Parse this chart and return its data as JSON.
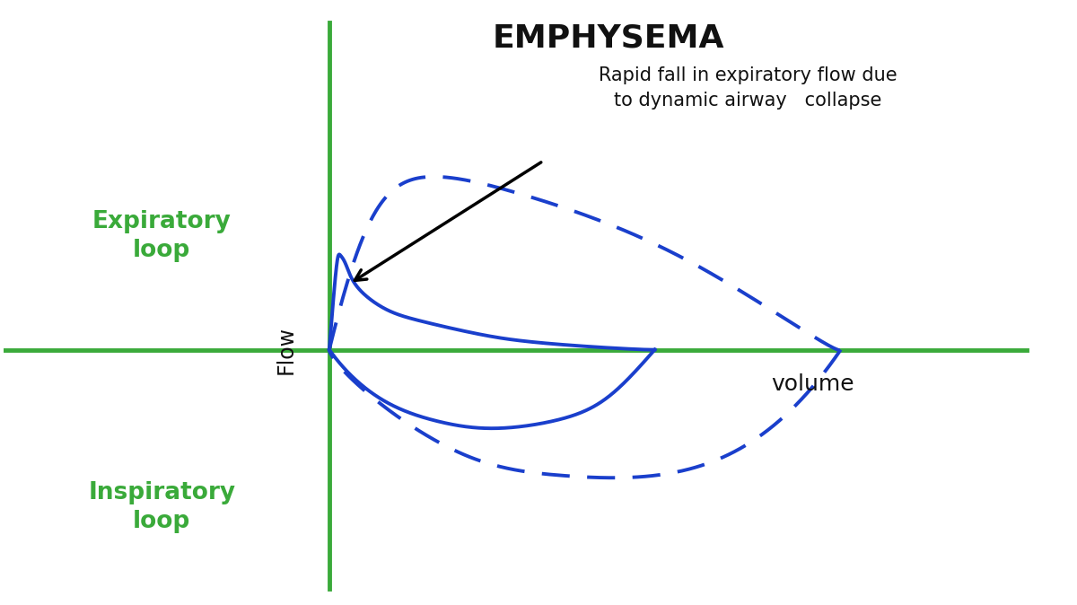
{
  "title": "EMPHYSEMA",
  "title_fontsize": 26,
  "title_fontweight": "bold",
  "bg_color": "#ffffff",
  "axis_color": "#3aaa3a",
  "curve_color": "#1a3fcc",
  "flow_label": "Flow",
  "volume_label": "volume",
  "expiratory_label": "Expiratory\nloop",
  "inspiratory_label": "Inspiratory\nloop",
  "annotation_text": "Rapid fall in expiratory flow due\nto dynamic airway   collapse",
  "label_color_green": "#3aaa3a",
  "label_color_black": "#111111"
}
